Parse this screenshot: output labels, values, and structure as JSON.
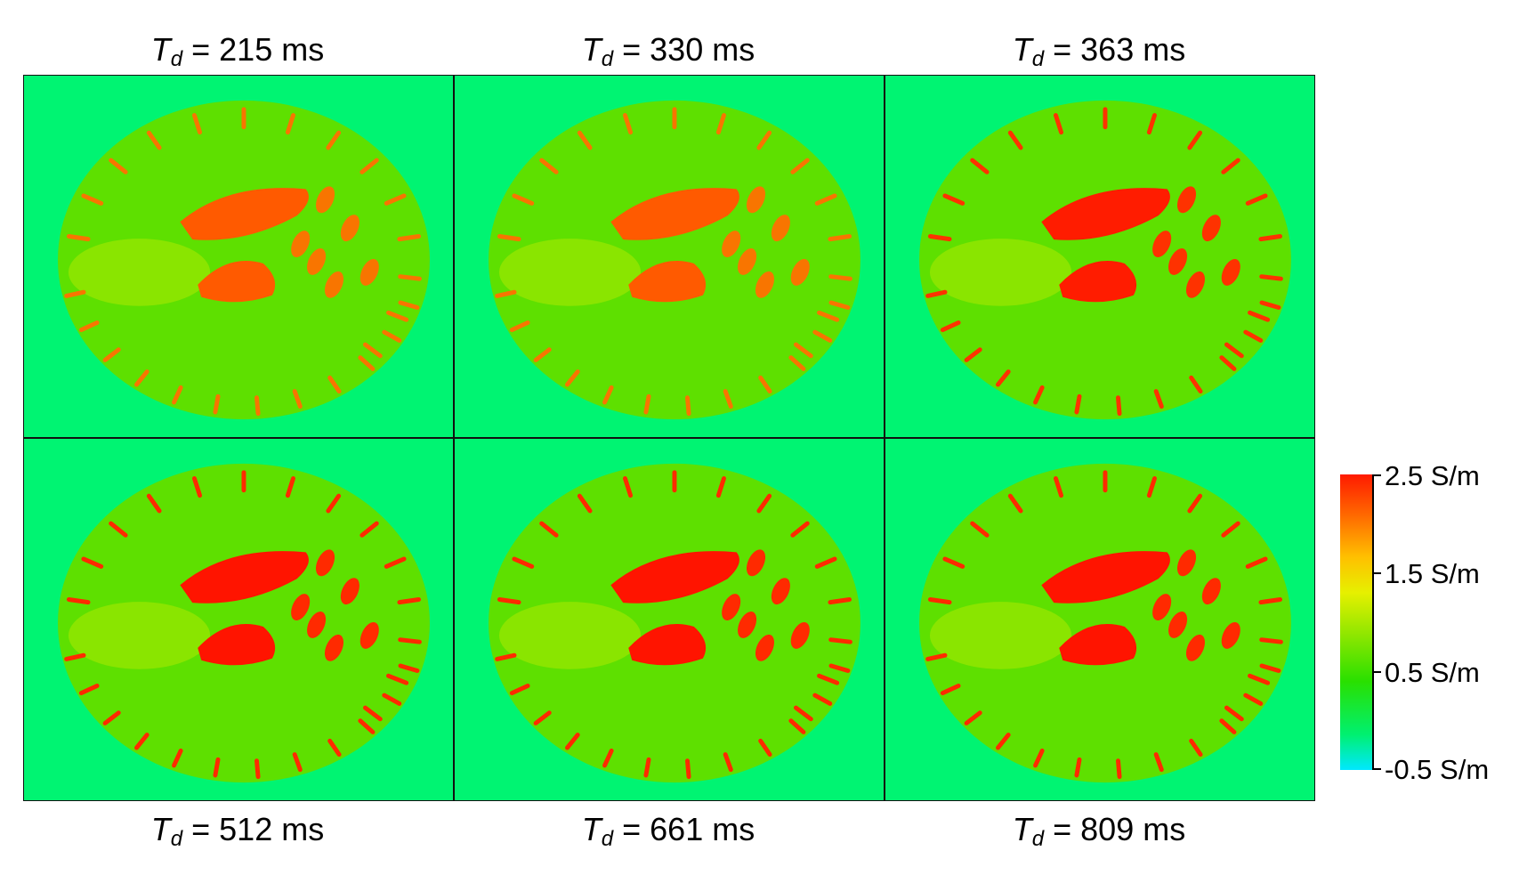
{
  "panels": [
    {
      "td_symbol": "T",
      "td_sub": "d",
      "label": " = 215 ms",
      "intensity": 0.55
    },
    {
      "td_symbol": "T",
      "td_sub": "d",
      "label": " = 330 ms",
      "intensity": 0.55
    },
    {
      "td_symbol": "T",
      "td_sub": "d",
      "label": " = 363 ms",
      "intensity": 0.95
    },
    {
      "td_symbol": "T",
      "td_sub": "d",
      "label": " = 512 ms",
      "intensity": 1.0
    },
    {
      "td_symbol": "T",
      "td_sub": "d",
      "label": " = 661 ms",
      "intensity": 1.0
    },
    {
      "td_symbol": "T",
      "td_sub": "d",
      "label": " = 809 ms",
      "intensity": 1.0
    }
  ],
  "colorbar": {
    "labels": [
      "2.5 S/m",
      "1.5 S/m",
      "0.5 S/m",
      "-0.5 S/m"
    ],
    "colors": [
      "#ff1a00",
      "#ffc000",
      "#29e000",
      "#00e8ff"
    ]
  }
}
